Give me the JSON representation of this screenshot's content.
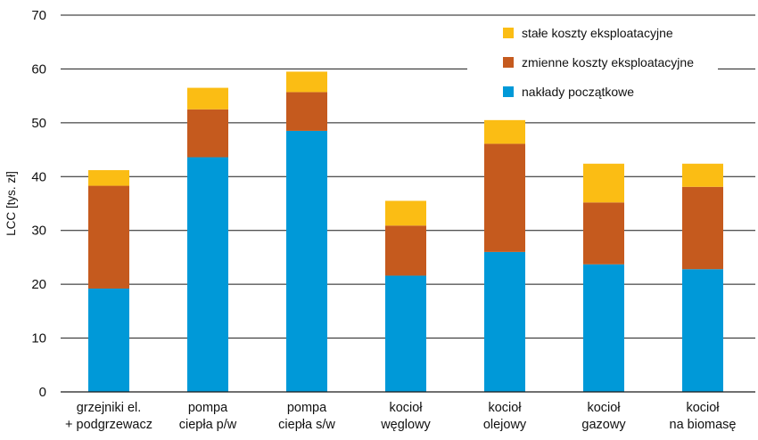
{
  "chart_data": {
    "type": "bar",
    "stacked": true,
    "ylabel": "LCC [tys. zł]",
    "xlabel": "",
    "ylim": [
      0,
      70
    ],
    "yticks": [
      0,
      10,
      20,
      30,
      40,
      50,
      60,
      70
    ],
    "grid": "horizontal",
    "legend_position": "top-right",
    "categories": [
      [
        "grzejniki el.",
        "+ podgrzewacz"
      ],
      [
        "pompa",
        "ciepła p/w"
      ],
      [
        "pompa",
        "ciepła s/w"
      ],
      [
        "kocioł",
        "węglowy"
      ],
      [
        "kocioł",
        "olejowy"
      ],
      [
        "kocioł",
        "gazowy"
      ],
      [
        "kocioł",
        "na biomasę"
      ]
    ],
    "series": [
      {
        "name": "nakłady początkowe",
        "color": "#0099d8",
        "values": [
          19.2,
          43.6,
          48.5,
          21.6,
          26.0,
          23.7,
          22.8
        ]
      },
      {
        "name": "zmienne koszty eksploatacyjne",
        "color": "#c55a1e",
        "values": [
          19.1,
          8.9,
          7.2,
          9.3,
          20.1,
          11.5,
          15.3
        ]
      },
      {
        "name": "stałe koszty eksploatacyjne",
        "color": "#fbbd14",
        "values": [
          2.9,
          4.0,
          3.8,
          4.6,
          4.4,
          7.2,
          4.3
        ]
      }
    ],
    "legend_order": [
      "stałe koszty eksploatacyjne",
      "zmienne koszty eksploatacyjne",
      "nakłady początkowe"
    ]
  }
}
